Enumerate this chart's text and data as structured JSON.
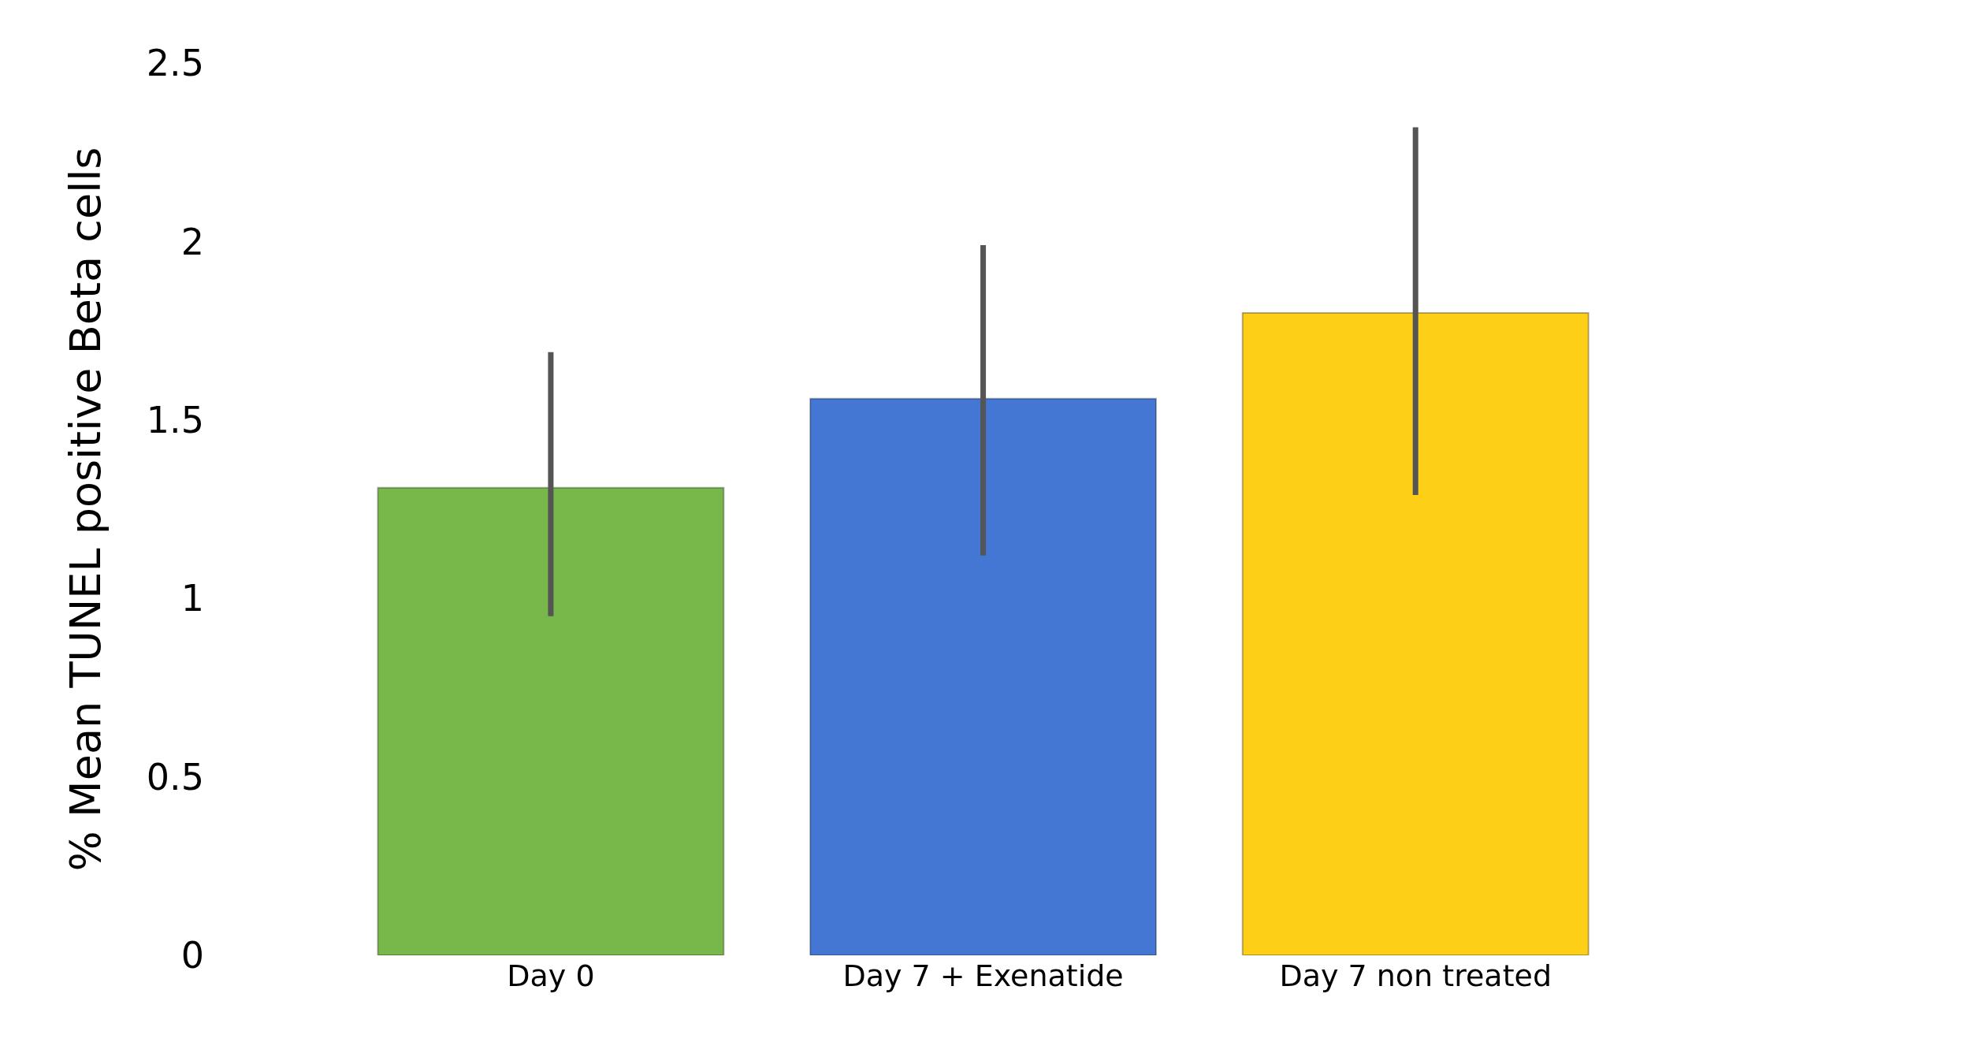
{
  "chart_data": {
    "type": "bar",
    "ylabel": "% Mean TUNEL positive Beta cells",
    "categories": [
      "Day 0",
      "Day 7 + Exenatide",
      "Day 7 non treated"
    ],
    "values": [
      1.31,
      1.56,
      1.8
    ],
    "colors": [
      "#78b74a",
      "#4477d4",
      "#fdd017"
    ],
    "errors": [
      [
        0.95,
        1.69
      ],
      [
        1.12,
        1.99
      ],
      [
        1.29,
        2.32
      ]
    ],
    "ylim": [
      0,
      2.5
    ],
    "yticks": [
      0,
      0.5,
      1,
      1.5,
      2,
      2.5
    ]
  }
}
